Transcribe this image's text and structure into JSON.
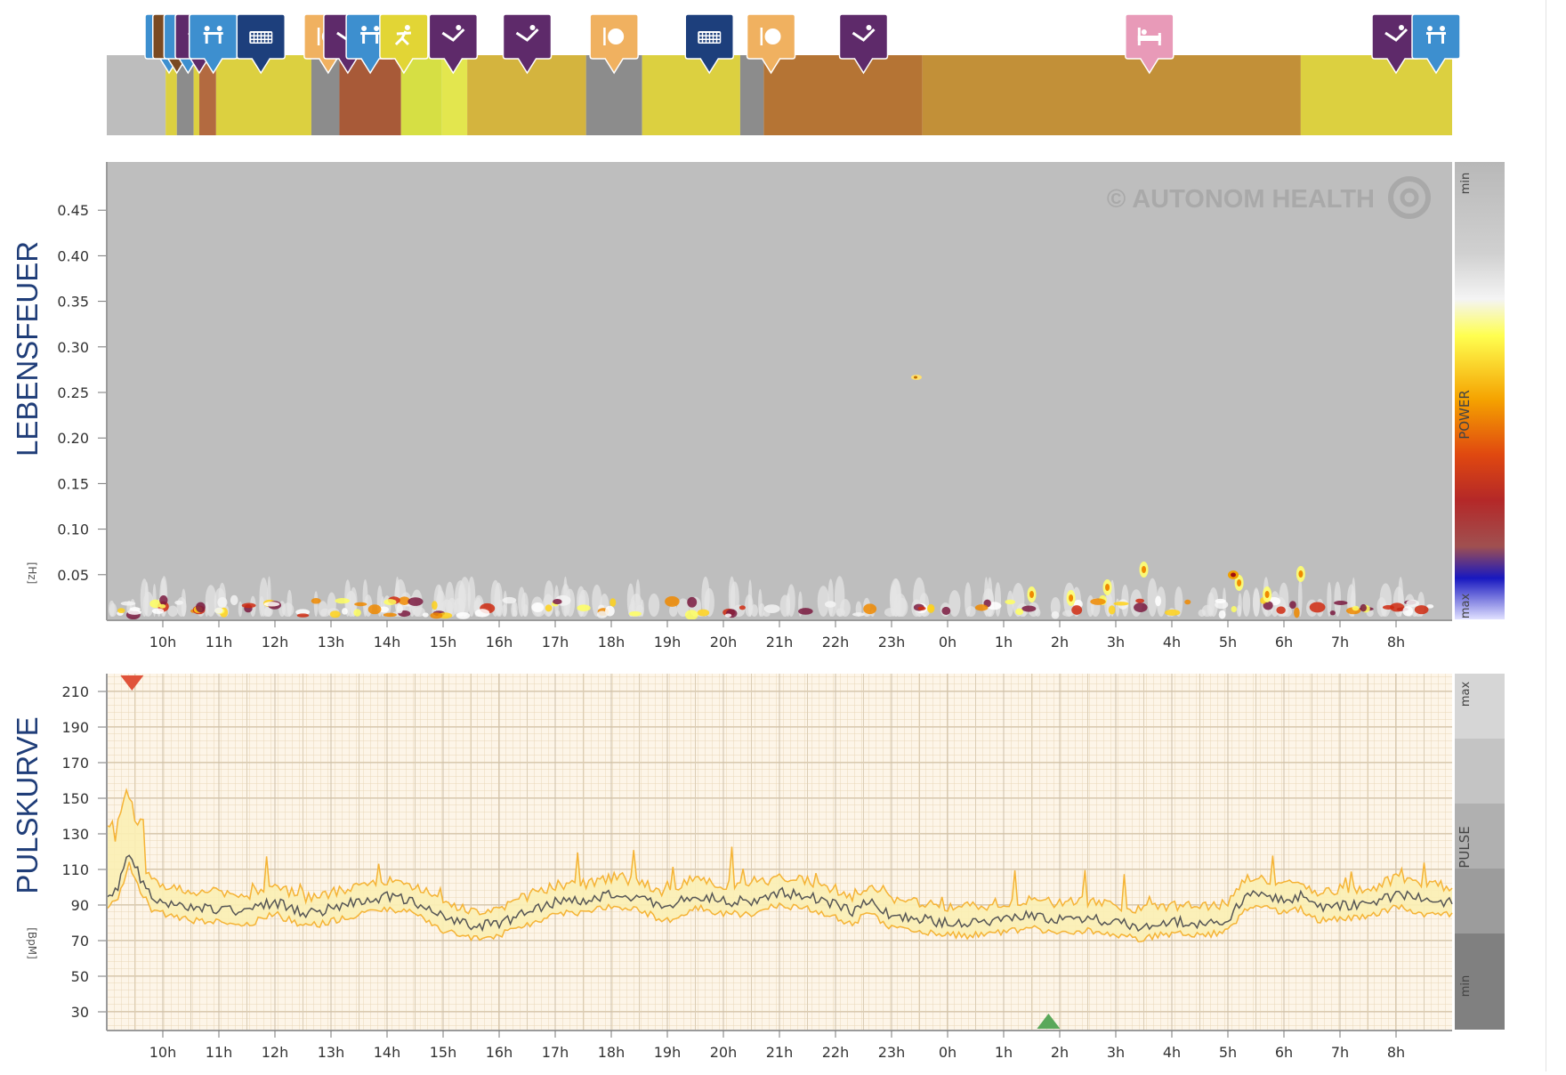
{
  "activity_strip": {
    "segments": [
      {
        "start": 9.0,
        "end": 10.05,
        "color": "#bdbdbd"
      },
      {
        "start": 10.05,
        "end": 10.25,
        "color": "#dcd040"
      },
      {
        "start": 10.25,
        "end": 10.55,
        "color": "#8c8c8c"
      },
      {
        "start": 10.55,
        "end": 10.65,
        "color": "#dcd040"
      },
      {
        "start": 10.65,
        "end": 10.95,
        "color": "#b36a40"
      },
      {
        "start": 10.95,
        "end": 12.65,
        "color": "#dcd040"
      },
      {
        "start": 12.65,
        "end": 13.15,
        "color": "#8c8c8c"
      },
      {
        "start": 13.15,
        "end": 14.25,
        "color": "#a85a38"
      },
      {
        "start": 14.25,
        "end": 14.98,
        "color": "#d6df44"
      },
      {
        "start": 14.98,
        "end": 15.43,
        "color": "#e3e64e"
      },
      {
        "start": 15.43,
        "end": 17.55,
        "color": "#d4b43e"
      },
      {
        "start": 17.55,
        "end": 18.55,
        "color": "#8c8c8c"
      },
      {
        "start": 18.55,
        "end": 20.3,
        "color": "#dcd040"
      },
      {
        "start": 20.3,
        "end": 20.72,
        "color": "#8c8c8c"
      },
      {
        "start": 20.72,
        "end": 23.55,
        "color": "#b57434"
      },
      {
        "start": 23.55,
        "end": 30.3,
        "color": "#c29038"
      },
      {
        "start": 30.3,
        "end": 33.0,
        "color": "#dcd040"
      }
    ],
    "icons": [
      {
        "t": 10.0,
        "kind": "meeting"
      },
      {
        "t": 10.25,
        "kind": "walk"
      },
      {
        "t": 10.45,
        "kind": "meeting"
      },
      {
        "t": 10.65,
        "kind": "relax"
      },
      {
        "t": 10.9,
        "kind": "meeting"
      },
      {
        "t": 11.75,
        "kind": "computer"
      },
      {
        "t": 12.95,
        "kind": "eat"
      },
      {
        "t": 13.3,
        "kind": "relax"
      },
      {
        "t": 13.7,
        "kind": "meeting"
      },
      {
        "t": 14.3,
        "kind": "sport"
      },
      {
        "t": 15.18,
        "kind": "relax"
      },
      {
        "t": 16.5,
        "kind": "relax"
      },
      {
        "t": 18.05,
        "kind": "eat"
      },
      {
        "t": 19.75,
        "kind": "computer"
      },
      {
        "t": 20.85,
        "kind": "eat"
      },
      {
        "t": 22.5,
        "kind": "relax"
      },
      {
        "t": 27.6,
        "kind": "sleep"
      },
      {
        "t": 32.0,
        "kind": "relax"
      },
      {
        "t": 33.3,
        "kind": "meeting"
      }
    ],
    "icon_colors": {
      "meeting": "#3d8fcf",
      "walk": "#7a4a22",
      "relax": "#5e2a6a",
      "computer": "#1d3f7c",
      "eat": "#f0b160",
      "sport": "#e2d535",
      "sleep": "#e89ab8"
    }
  },
  "spectrogram": {
    "title": "LEBENSFEUER",
    "unit": "[Hz]",
    "watermark": "© AUTONOM HEALTH",
    "y_ticks": [
      "0.45",
      "0.40",
      "0.35",
      "0.30",
      "0.25",
      "0.20",
      "0.15",
      "0.10",
      "0.05"
    ],
    "legend_title": "POWER",
    "legend_min": "min",
    "legend_max": "max",
    "background": "#bebebe"
  },
  "pulse": {
    "title": "PULSKURVE",
    "unit": "[BpM]",
    "y_ticks": [
      "210",
      "190",
      "170",
      "150",
      "130",
      "110",
      "90",
      "70",
      "50",
      "30"
    ],
    "legend_title": "PULSE",
    "legend_max": "max",
    "legend_min": "min",
    "marker_max_color": "#e0533a",
    "marker_min_color": "#5aa85a",
    "line_color": "#555555",
    "band_color": "#f5b335",
    "background": "#fdf5e8"
  },
  "time_axis": {
    "labels": [
      "10h",
      "11h",
      "12h",
      "13h",
      "14h",
      "15h",
      "16h",
      "17h",
      "18h",
      "19h",
      "20h",
      "21h",
      "22h",
      "23h",
      "0h",
      "1h",
      "2h",
      "3h",
      "4h",
      "5h",
      "6h",
      "7h",
      "8h"
    ]
  },
  "chart_data": [
    {
      "type": "heatmap",
      "title": "LEBENSFEUER",
      "ylabel": "[Hz]",
      "x_range": [
        "09:00",
        "09:00 next day"
      ],
      "ylim": [
        0,
        0.5
      ],
      "y_ticks": [
        0.05,
        0.1,
        0.15,
        0.2,
        0.25,
        0.3,
        0.35,
        0.4,
        0.45
      ],
      "x_ticks": [
        "10h",
        "11h",
        "12h",
        "13h",
        "14h",
        "15h",
        "16h",
        "17h",
        "18h",
        "19h",
        "20h",
        "21h",
        "22h",
        "23h",
        "0h",
        "1h",
        "2h",
        "3h",
        "4h",
        "5h",
        "6h",
        "7h",
        "8h"
      ],
      "legend": "POWER (min → max)"
    },
    {
      "type": "line",
      "title": "PULSKURVE",
      "ylabel": "[BpM]",
      "ylim": [
        20,
        220
      ],
      "y_ticks": [
        30,
        50,
        70,
        90,
        110,
        130,
        150,
        170,
        190,
        210
      ],
      "x_ticks": [
        "10h",
        "11h",
        "12h",
        "13h",
        "14h",
        "15h",
        "16h",
        "17h",
        "18h",
        "19h",
        "20h",
        "21h",
        "22h",
        "23h",
        "0h",
        "1h",
        "2h",
        "3h",
        "4h",
        "5h",
        "6h",
        "7h",
        "8h"
      ],
      "max_marker_time": 9.45,
      "min_marker_time": 25.8,
      "series": [
        {
          "x": [
            9.0,
            9.2,
            9.4,
            9.6,
            9.8,
            10.0,
            10.3,
            10.6,
            11.0,
            11.5,
            12.0,
            12.3,
            12.6,
            13.0,
            13.5,
            14.0,
            14.5,
            15.0,
            15.5,
            16.0,
            16.5,
            17.0,
            17.5,
            18.0,
            18.5,
            19.0,
            19.5,
            20.0,
            20.5,
            21.0,
            21.5,
            22.0,
            22.3,
            22.6,
            23.0,
            23.5,
            0.0,
            0.5,
            1.0,
            1.5,
            2.0,
            2.5,
            3.0,
            3.5,
            4.0,
            4.5,
            5.0,
            5.3,
            5.6,
            6.0,
            6.3,
            6.6,
            7.0,
            7.5,
            8.0,
            8.5,
            9.0
          ],
          "values": [
            95,
            100,
            120,
            105,
            95,
            92,
            90,
            88,
            88,
            86,
            92,
            88,
            85,
            88,
            92,
            95,
            92,
            83,
            78,
            80,
            86,
            92,
            93,
            96,
            94,
            88,
            96,
            92,
            92,
            97,
            95,
            90,
            86,
            93,
            84,
            82,
            80,
            80,
            82,
            84,
            82,
            83,
            80,
            78,
            81,
            80,
            82,
            95,
            96,
            93,
            95,
            88,
            90,
            90,
            96,
            93,
            92
          ]
        }
      ]
    }
  ]
}
